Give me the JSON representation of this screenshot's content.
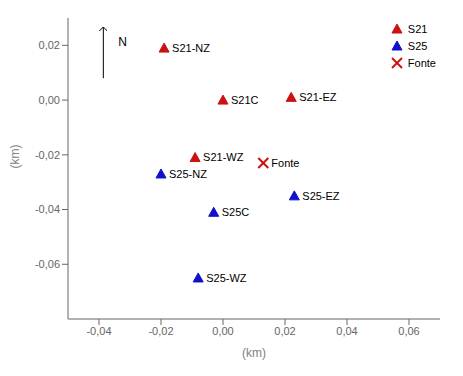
{
  "chart_data": {
    "type": "scatter",
    "xlabel": "(km)",
    "ylabel": "(km)",
    "xlim": [
      -0.05,
      0.07
    ],
    "ylim": [
      -0.08,
      0.03
    ],
    "xticks": [
      {
        "value": -0.04,
        "label": "-0,04"
      },
      {
        "value": -0.02,
        "label": "-0,02"
      },
      {
        "value": 0.0,
        "label": "0,00"
      },
      {
        "value": 0.02,
        "label": "0,02"
      },
      {
        "value": 0.04,
        "label": "0,04"
      },
      {
        "value": 0.06,
        "label": "0,06"
      }
    ],
    "yticks": [
      {
        "value": -0.06,
        "label": "-0,06"
      },
      {
        "value": -0.04,
        "label": "-0,04"
      },
      {
        "value": -0.02,
        "label": "-0,02"
      },
      {
        "value": 0.0,
        "label": "0,00"
      },
      {
        "value": 0.02,
        "label": "0,02"
      }
    ],
    "grid": false,
    "legend": "upper right",
    "annotations": [
      "N"
    ],
    "series": [
      {
        "name": "S21",
        "color": "#cc1111",
        "marker": "triangle",
        "labels": [
          "S21-NZ",
          "S21C",
          "S21-EZ",
          "S21-WZ"
        ],
        "x": [
          -0.019,
          0.0,
          0.022,
          -0.009
        ],
        "values": [
          0.019,
          0.0,
          0.001,
          -0.021
        ]
      },
      {
        "name": "S25",
        "color": "#1111cc",
        "marker": "triangle",
        "labels": [
          "S25-NZ",
          "S25C",
          "S25-EZ",
          "S25-WZ"
        ],
        "x": [
          -0.02,
          -0.003,
          0.023,
          -0.008
        ],
        "values": [
          -0.027,
          -0.041,
          -0.035,
          -0.065
        ]
      },
      {
        "name": "Fonte",
        "color": "#cc1111",
        "marker": "x",
        "labels": [
          "Fonte"
        ],
        "x": [
          0.013
        ],
        "values": [
          -0.023
        ]
      }
    ]
  }
}
